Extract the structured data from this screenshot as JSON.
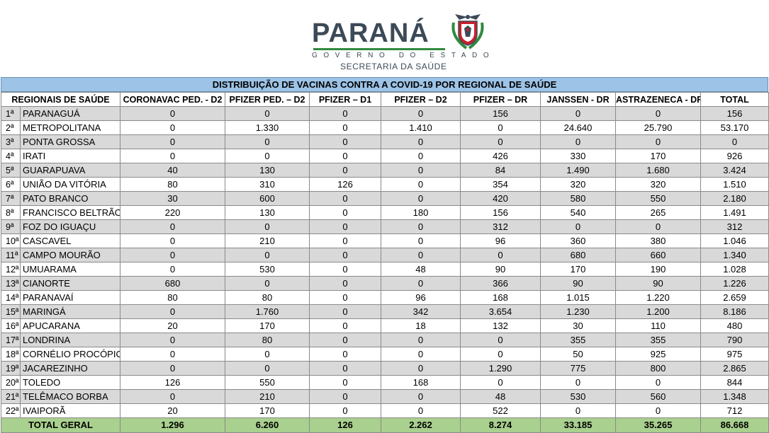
{
  "header": {
    "brand": "PARANÁ",
    "government": "GOVERNO DO ESTADO",
    "department": "SECRETARIA DA SAÚDE",
    "crest_icon": "parana-coat-of-arms-icon",
    "brand_color": "#3c4a57",
    "accent_color": "#2f8a3e"
  },
  "table": {
    "title": "DISTRIBUIÇÃO DE VACINAS CONTRA A COVID-19 POR REGIONAL DE SAÚDE",
    "columns": [
      "REGIONAIS DE SAÚDE",
      "CORONAVAC PED. - D2",
      "PFIZER PED.  – D2",
      "PFIZER – D1",
      "PFIZER – D2",
      "PFIZER – DR",
      "JANSSEN - DR",
      "ASTRAZENECA - DR",
      "TOTAL"
    ],
    "rows": [
      {
        "rank": "1ª",
        "name": "PARANAGUÁ",
        "values": [
          "0",
          "0",
          "0",
          "0",
          "156",
          "0",
          "0",
          "156"
        ]
      },
      {
        "rank": "2ª",
        "name": "METROPOLITANA",
        "values": [
          "0",
          "1.330",
          "0",
          "1.410",
          "0",
          "24.640",
          "25.790",
          "53.170"
        ]
      },
      {
        "rank": "3ª",
        "name": "PONTA GROSSA",
        "values": [
          "0",
          "0",
          "0",
          "0",
          "0",
          "0",
          "0",
          "0"
        ]
      },
      {
        "rank": "4ª",
        "name": "IRATI",
        "values": [
          "0",
          "0",
          "0",
          "0",
          "426",
          "330",
          "170",
          "926"
        ]
      },
      {
        "rank": "5ª",
        "name": "GUARAPUAVA",
        "values": [
          "40",
          "130",
          "0",
          "0",
          "84",
          "1.490",
          "1.680",
          "3.424"
        ]
      },
      {
        "rank": "6ª",
        "name": "UNIÃO DA VITÓRIA",
        "values": [
          "80",
          "310",
          "126",
          "0",
          "354",
          "320",
          "320",
          "1.510"
        ]
      },
      {
        "rank": "7ª",
        "name": "PATO BRANCO",
        "values": [
          "30",
          "600",
          "0",
          "0",
          "420",
          "580",
          "550",
          "2.180"
        ]
      },
      {
        "rank": "8ª",
        "name": "FRANCISCO BELTRÃO",
        "values": [
          "220",
          "130",
          "0",
          "180",
          "156",
          "540",
          "265",
          "1.491"
        ]
      },
      {
        "rank": "9ª",
        "name": "FOZ DO IGUAÇU",
        "values": [
          "0",
          "0",
          "0",
          "0",
          "312",
          "0",
          "0",
          "312"
        ]
      },
      {
        "rank": "10ª",
        "name": "CASCAVEL",
        "values": [
          "0",
          "210",
          "0",
          "0",
          "96",
          "360",
          "380",
          "1.046"
        ]
      },
      {
        "rank": "11ª",
        "name": "CAMPO MOURÃO",
        "values": [
          "0",
          "0",
          "0",
          "0",
          "0",
          "680",
          "660",
          "1.340"
        ]
      },
      {
        "rank": "12ª",
        "name": "UMUARAMA",
        "values": [
          "0",
          "530",
          "0",
          "48",
          "90",
          "170",
          "190",
          "1.028"
        ]
      },
      {
        "rank": "13ª",
        "name": "CIANORTE",
        "values": [
          "680",
          "0",
          "0",
          "0",
          "366",
          "90",
          "90",
          "1.226"
        ]
      },
      {
        "rank": "14ª",
        "name": "PARANAVAÍ",
        "values": [
          "80",
          "80",
          "0",
          "96",
          "168",
          "1.015",
          "1.220",
          "2.659"
        ]
      },
      {
        "rank": "15ª",
        "name": "MARINGÁ",
        "values": [
          "0",
          "1.760",
          "0",
          "342",
          "3.654",
          "1.230",
          "1.200",
          "8.186"
        ]
      },
      {
        "rank": "16ª",
        "name": "APUCARANA",
        "values": [
          "20",
          "170",
          "0",
          "18",
          "132",
          "30",
          "110",
          "480"
        ]
      },
      {
        "rank": "17ª",
        "name": "LONDRINA",
        "values": [
          "0",
          "80",
          "0",
          "0",
          "0",
          "355",
          "355",
          "790"
        ]
      },
      {
        "rank": "18ª",
        "name": "CORNÉLIO PROCÓPIO",
        "values": [
          "0",
          "0",
          "0",
          "0",
          "0",
          "50",
          "925",
          "975"
        ]
      },
      {
        "rank": "19ª",
        "name": "JACAREZINHO",
        "values": [
          "0",
          "0",
          "0",
          "0",
          "1.290",
          "775",
          "800",
          "2.865"
        ]
      },
      {
        "rank": "20ª",
        "name": "TOLEDO",
        "values": [
          "126",
          "550",
          "0",
          "168",
          "0",
          "0",
          "0",
          "844"
        ]
      },
      {
        "rank": "21ª",
        "name": "TELÊMACO BORBA",
        "values": [
          "0",
          "210",
          "0",
          "0",
          "48",
          "530",
          "560",
          "1.348"
        ]
      },
      {
        "rank": "22ª",
        "name": "IVAIPORÃ",
        "values": [
          "20",
          "170",
          "0",
          "0",
          "522",
          "0",
          "0",
          "712"
        ]
      }
    ],
    "total": {
      "label": "TOTAL GERAL",
      "values": [
        "1.296",
        "6.260",
        "126",
        "2.262",
        "8.274",
        "33.185",
        "35.265",
        "86.668"
      ]
    },
    "colors": {
      "title_bg": "#9dc3e6",
      "alt_row_bg": "#d9d9d9",
      "total_bg": "#a9d08e"
    }
  }
}
